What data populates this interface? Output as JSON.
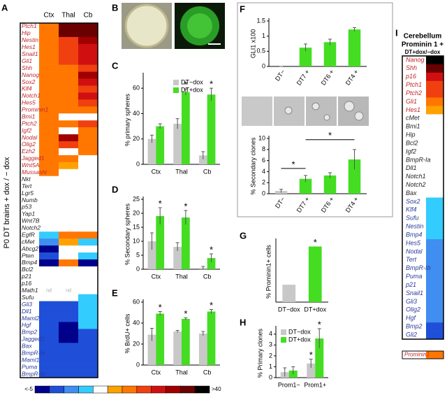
{
  "panel_labels": [
    "A",
    "B",
    "C",
    "D",
    "E",
    "F",
    "G",
    "H",
    "I"
  ],
  "heatmap_a": {
    "columns": [
      "Ctx",
      "Thal",
      "Cb"
    ],
    "side_label": "P0 DT brains + dox / − dox",
    "rows": [
      {
        "gene": "Ptch1",
        "color": "#c0272d",
        "cells": [
          "#ff7700",
          "#6a0000",
          "#6a0000"
        ]
      },
      {
        "gene": "Hip",
        "color": "#c0272d",
        "cells": [
          "#ff7700",
          "#6a0000",
          "#6a0000"
        ]
      },
      {
        "gene": "Nestin",
        "color": "#c0272d",
        "cells": [
          "#ff7700",
          "#f04010",
          "#a00000"
        ]
      },
      {
        "gene": "Hes1",
        "color": "#c0272d",
        "cells": [
          "#ff7700",
          "#f04010",
          "#d01010"
        ]
      },
      {
        "gene": "Snail1",
        "color": "#c0272d",
        "cells": [
          "#ff7700",
          "#f04010",
          "#d01010"
        ]
      },
      {
        "gene": "Gli1",
        "color": "#c0272d",
        "cells": [
          "#ff7700",
          "#f04010",
          "#d01010"
        ]
      },
      {
        "gene": "Shh",
        "color": "#c0272d",
        "cells": [
          "#ff7700",
          "#ff7700",
          "#f04010"
        ]
      },
      {
        "gene": "Nanog",
        "color": "#c0272d",
        "cells": [
          "#ff7700",
          "#ff7700",
          "#a00000"
        ]
      },
      {
        "gene": "Sox2",
        "color": "#c0272d",
        "cells": [
          "#ff7700",
          "#ff7700",
          "#d01010"
        ]
      },
      {
        "gene": "Klf4",
        "color": "#c0272d",
        "cells": [
          "#ff7700",
          "#ff7700",
          "#f04010"
        ]
      },
      {
        "gene": "Notch1",
        "color": "#c0272d",
        "cells": [
          "#ff7700",
          "#ff7700",
          "#d01010"
        ]
      },
      {
        "gene": "Hes5",
        "color": "#c0272d",
        "cells": [
          "#ff7700",
          "#ff7700",
          "#f04010"
        ]
      },
      {
        "gene": "Prominin1",
        "color": "#c0272d",
        "cells": [
          "#ff7700",
          "#ff7700",
          "#ff7700"
        ]
      },
      {
        "gene": "Bmi1",
        "color": "#c0272d",
        "cells": [
          "#ff7700",
          "#ffffff",
          "#ffffff"
        ]
      },
      {
        "gene": "Ptch2",
        "color": "#c0272d",
        "cells": [
          "#ff7700",
          "#ff7700",
          "#f04010"
        ]
      },
      {
        "gene": "Igf2",
        "color": "#c0272d",
        "cells": [
          "#ff7700",
          "#ffffff",
          "#ff7700"
        ]
      },
      {
        "gene": "Nodal",
        "color": "#c0272d",
        "cells": [
          "#ff7700",
          "#a00000",
          "#ff7700"
        ]
      },
      {
        "gene": "Olig2",
        "color": "#c0272d",
        "cells": [
          "#ff7700",
          "#f04010",
          "#ff7700"
        ]
      },
      {
        "gene": "Ezh2",
        "color": "#c0272d",
        "cells": [
          "#ff7700",
          "#ffffff",
          "#ff7700"
        ]
      },
      {
        "gene": "Jagged1",
        "color": "#c0272d",
        "cells": [
          "#ff7700",
          "#ff7700",
          "#ffffff"
        ]
      },
      {
        "gene": "Wnt5A",
        "color": "#c0272d",
        "cells": [
          "#ff7700",
          "#ffa200",
          "#ffffff"
        ]
      },
      {
        "gene": "Mussashi",
        "color": "#c0272d",
        "cells": [
          "#ff7700",
          "#ffffff",
          "#ffffff"
        ]
      },
      {
        "gene": "Nkt",
        "color": "#222222",
        "cells": [
          "#ffffff",
          "#ffffff",
          "#ffffff"
        ]
      },
      {
        "gene": "Tert",
        "color": "#222222",
        "cells": [
          "#ffffff",
          "#ffffff",
          "#ffffff"
        ]
      },
      {
        "gene": "Lgr5",
        "color": "#222222",
        "cells": [
          "#ffffff",
          "#ffffff",
          "#ffffff"
        ]
      },
      {
        "gene": "Numb",
        "color": "#222222",
        "cells": [
          "#ffffff",
          "#ffffff",
          "#ffffff"
        ]
      },
      {
        "gene": "p53",
        "color": "#222222",
        "cells": [
          "#ffffff",
          "#ffffff",
          "#ffffff"
        ]
      },
      {
        "gene": "Yap1",
        "color": "#222222",
        "cells": [
          "#ffffff",
          "#ffffff",
          "#ffffff"
        ]
      },
      {
        "gene": "Wnt7B",
        "color": "#222222",
        "cells": [
          "#ffffff",
          "#ffffff",
          "#ffffff"
        ]
      },
      {
        "gene": "Notch2",
        "color": "#222222",
        "cells": [
          "#ffffff",
          "#ffffff",
          "#ffffff"
        ]
      },
      {
        "gene": "EgfR",
        "color": "#222222",
        "cells": [
          "#33ccff",
          "#ff7700",
          "#ff7700"
        ]
      },
      {
        "gene": "cMet",
        "color": "#222222",
        "cells": [
          "#3f8ef0",
          "#ffa200",
          "#33ccff"
        ]
      },
      {
        "gene": "Abcg2",
        "color": "#222222",
        "cells": [
          "#00008b",
          "#ffffff",
          "#ffffff"
        ]
      },
      {
        "gene": "Pten",
        "color": "#222222",
        "cells": [
          "#1f4fd8",
          "#ffffff",
          "#33ccff"
        ]
      },
      {
        "gene": "Bmp4",
        "color": "#222222",
        "cells": [
          "#00008b",
          "#ff7700",
          "#00008b"
        ]
      },
      {
        "gene": "Bcl2",
        "color": "#222222",
        "cells": [
          "#ffffff",
          "#ffffff",
          "#ffffff"
        ]
      },
      {
        "gene": "p21",
        "color": "#222222",
        "cells": [
          "#ffffff",
          "#ffffff",
          "#ffffff"
        ]
      },
      {
        "gene": "p16",
        "color": "#222222",
        "cells": [
          "#ffffff",
          "#ffffff",
          "#ffffff"
        ]
      },
      {
        "gene": "Math1",
        "color": "#222222",
        "cells": [
          "#ffffff",
          "#ffffff",
          "#ffffff"
        ],
        "texts": [
          "nd",
          "nd",
          null
        ]
      },
      {
        "gene": "Sufu",
        "color": "#222222",
        "cells": [
          "#ffffff",
          "#ffffff",
          "#33ccff"
        ]
      },
      {
        "gene": "Gli3",
        "color": "#2b3a9a",
        "cells": [
          "#1f4fd8",
          "#1f4fd8",
          "#33ccff"
        ]
      },
      {
        "gene": "Dll1",
        "color": "#2b3a9a",
        "cells": [
          "#1f4fd8",
          "#1f4fd8",
          "#33ccff"
        ]
      },
      {
        "gene": "Maml2",
        "color": "#2b3a9a",
        "cells": [
          "#1f4fd8",
          "#1f4fd8",
          "#33ccff"
        ]
      },
      {
        "gene": "Hgf",
        "color": "#2b3a9a",
        "cells": [
          "#1f4fd8",
          "#00008b",
          "#33ccff"
        ]
      },
      {
        "gene": "Bmp2",
        "color": "#2b3a9a",
        "cells": [
          "#1f4fd8",
          "#00008b",
          "#1f4fd8"
        ]
      },
      {
        "gene": "Jagged2",
        "color": "#2b3a9a",
        "cells": [
          "#1f4fd8",
          "#00008b",
          "#1f4fd8"
        ]
      },
      {
        "gene": "Bax",
        "color": "#2b3a9a",
        "cells": [
          "#1f4fd8",
          "#1f4fd8",
          "#1f4fd8"
        ]
      },
      {
        "gene": "BmpR-Ia",
        "color": "#2b3a9a",
        "cells": [
          "#1f4fd8",
          "#1f4fd8",
          "#1f4fd8"
        ]
      },
      {
        "gene": "Maml1",
        "color": "#2b3a9a",
        "cells": [
          "#1f4fd8",
          "#1f4fd8",
          "#1f4fd8"
        ]
      },
      {
        "gene": "Puma",
        "color": "#2b3a9a",
        "cells": [
          "#1f4fd8",
          "#1f4fd8",
          "#1f4fd8"
        ]
      },
      {
        "gene": "BmpR-Ib",
        "color": "#2b3a9a",
        "cells": [
          "#1f4fd8",
          "#1f4fd8",
          "#1f4fd8"
        ]
      }
    ],
    "scale": {
      "colors": [
        "#00008b",
        "#1f4fd8",
        "#3f8ef0",
        "#33ccff",
        "#ffffff",
        "#ffa200",
        "#ff7700",
        "#f04010",
        "#d01010",
        "#a00000",
        "#6a0000",
        "#000000"
      ],
      "low": "<-5",
      "high": ">40"
    }
  },
  "heatmap_i": {
    "title": "Cerebellum",
    "subtitle": "Prominin 1 +",
    "condition": "DT+dox/−dox",
    "rows": [
      {
        "gene": "Nanog",
        "color": "#c0272d",
        "cell": "#000000"
      },
      {
        "gene": "Shh",
        "color": "#c0272d",
        "cell": "#6a0000"
      },
      {
        "gene": "p16",
        "color": "#c0272d",
        "cell": "#d01010"
      },
      {
        "gene": "Ptch1",
        "color": "#c0272d",
        "cell": "#f04010"
      },
      {
        "gene": "Ptch2",
        "color": "#c0272d",
        "cell": "#f04010"
      },
      {
        "gene": "Gli1",
        "color": "#c0272d",
        "cell": "#ff7700"
      },
      {
        "gene": "Hes1",
        "color": "#c0272d",
        "cell": "#ffa200"
      },
      {
        "gene": "cMet",
        "color": "#222222",
        "cell": "#ffffff"
      },
      {
        "gene": "Bmi1",
        "color": "#222222",
        "cell": "#ffffff"
      },
      {
        "gene": "Hip",
        "color": "#222222",
        "cell": "#ffffff"
      },
      {
        "gene": "Bcl2",
        "color": "#222222",
        "cell": "#ffffff"
      },
      {
        "gene": "Igf2",
        "color": "#222222",
        "cell": "#ffffff"
      },
      {
        "gene": "BmpR-Ia",
        "color": "#222222",
        "cell": "#ffffff"
      },
      {
        "gene": "Dll1",
        "color": "#222222",
        "cell": "#ffffff"
      },
      {
        "gene": "Notch1",
        "color": "#222222",
        "cell": "#ffffff"
      },
      {
        "gene": "Notch2",
        "color": "#222222",
        "cell": "#ffffff"
      },
      {
        "gene": "Bax",
        "color": "#222222",
        "cell": "#ffffff"
      },
      {
        "gene": "Sox2",
        "color": "#2b3a9a",
        "cell": "#33ccff"
      },
      {
        "gene": "Klf4",
        "color": "#2b3a9a",
        "cell": "#33ccff"
      },
      {
        "gene": "Sufu",
        "color": "#2b3a9a",
        "cell": "#33ccff"
      },
      {
        "gene": "Nestin",
        "color": "#2b3a9a",
        "cell": "#33ccff"
      },
      {
        "gene": "Bmp4",
        "color": "#2b3a9a",
        "cell": "#33ccff"
      },
      {
        "gene": "Hes5",
        "color": "#2b3a9a",
        "cell": "#3f8ef0"
      },
      {
        "gene": "Nodal",
        "color": "#2b3a9a",
        "cell": "#3f8ef0"
      },
      {
        "gene": "Tert",
        "color": "#2b3a9a",
        "cell": "#3f8ef0"
      },
      {
        "gene": "BmpR-Ib",
        "color": "#2b3a9a",
        "cell": "#3f8ef0"
      },
      {
        "gene": "Puma",
        "color": "#2b3a9a",
        "cell": "#3f8ef0"
      },
      {
        "gene": "p21",
        "color": "#2b3a9a",
        "cell": "#3f8ef0"
      },
      {
        "gene": "Snail1",
        "color": "#2b3a9a",
        "cell": "#3f8ef0"
      },
      {
        "gene": "Gli3",
        "color": "#2b3a9a",
        "cell": "#3f8ef0"
      },
      {
        "gene": "Olig2",
        "color": "#2b3a9a",
        "cell": "#3f8ef0"
      },
      {
        "gene": "Hgf",
        "color": "#2b3a9a",
        "cell": "#3f8ef0"
      },
      {
        "gene": "Bmp2",
        "color": "#2b3a9a",
        "cell": "#1f4fd8"
      },
      {
        "gene": "Gli2",
        "color": "#2b3a9a",
        "cell": "#1f4fd8"
      }
    ],
    "separate": {
      "gene": "Prominin1",
      "color": "#c0272d",
      "cell": "#ff7700"
    }
  },
  "chart_data": [
    {
      "type": "bar",
      "ylabel": "% primary spheres",
      "categories": [
        "Ctx",
        "Thal",
        "Cb"
      ],
      "ylim": [
        0,
        70
      ],
      "yticks": [
        0,
        20,
        40,
        60
      ],
      "legend": true,
      "series": [
        {
          "name": "DT−dox",
          "color": "#c8c8c8",
          "values": [
            20,
            32,
            7
          ],
          "errors": [
            3,
            4,
            3
          ],
          "significance": [
            null,
            null,
            null
          ]
        },
        {
          "name": "DT+dox",
          "color": "#44dd22",
          "values": [
            30,
            57,
            55
          ],
          "errors": [
            2,
            2.5,
            5
          ],
          "significance": [
            null,
            "*",
            "*"
          ]
        }
      ]
    },
    {
      "type": "bar",
      "ylabel": "% Secondary spheres",
      "categories": [
        "Ctx",
        "Thal",
        "Cb"
      ],
      "ylim": [
        0,
        25
      ],
      "yticks": [
        0,
        5,
        10,
        15,
        20,
        25
      ],
      "series": [
        {
          "color": "#c8c8c8",
          "values": [
            10,
            8,
            0.5
          ],
          "errors": [
            3,
            1.5,
            0.5
          ]
        },
        {
          "color": "#44dd22",
          "values": [
            19,
            18.5,
            4
          ],
          "errors": [
            3,
            2.5,
            1.5
          ],
          "significance": [
            "*",
            "*",
            "*"
          ]
        }
      ]
    },
    {
      "type": "bar",
      "ylabel": "% BrdU+ cells",
      "categories": [
        "Ctx",
        "Thal",
        "Cb"
      ],
      "ylim": [
        0,
        60
      ],
      "yticks": [
        0,
        20,
        40,
        60
      ],
      "series": [
        {
          "color": "#c8c8c8",
          "values": [
            29,
            32,
            30
          ],
          "errors": [
            6,
            1,
            2
          ]
        },
        {
          "color": "#44dd22",
          "values": [
            49,
            44,
            51
          ],
          "errors": [
            2,
            1,
            2
          ],
          "significance": [
            "*",
            "*",
            "*"
          ]
        }
      ]
    },
    {
      "type": "bar",
      "ylabel": "GLI1 x100",
      "categories": [
        "DT−",
        "DT7 +",
        "DT6 +",
        "DT4 +"
      ],
      "ylim": [
        0,
        1.5
      ],
      "yticks": [
        0,
        0.5,
        1,
        1.5
      ],
      "series": [
        {
          "color": "#44dd22",
          "values": [
            0,
            0.62,
            0.8,
            1.22
          ],
          "errors": [
            0,
            0.12,
            0.1,
            0.06
          ]
        }
      ]
    },
    {
      "type": "bar",
      "ylabel": "% Secondary clones",
      "categories": [
        "DT−",
        "DT7 +",
        "DT6 +",
        "DT4 +"
      ],
      "ylim": [
        0,
        10
      ],
      "yticks": [
        0,
        2,
        4,
        6,
        8,
        10
      ],
      "series": [
        {
          "colors": [
            "#c8c8c8",
            "#44dd22",
            "#44dd22",
            "#44dd22"
          ],
          "values": [
            0.5,
            2.7,
            3.3,
            6.2
          ],
          "errors": [
            0.3,
            0.6,
            0.5,
            1.8
          ]
        }
      ],
      "comparisons": [
        {
          "label": "*",
          "from": 0,
          "to": 1
        },
        {
          "label": "*",
          "from": 1,
          "to": 3
        }
      ]
    },
    {
      "type": "bar",
      "ylabel": "% Prominin1+ cells",
      "categories": [
        "DT−dox",
        "DT+dox"
      ],
      "ylim": [
        0,
        35
      ],
      "series": [
        {
          "colors": [
            "#c8c8c8",
            "#44dd22"
          ],
          "values": [
            10,
            32
          ],
          "significance": [
            null,
            "*"
          ]
        }
      ]
    },
    {
      "type": "bar",
      "ylabel": "% Primary clones",
      "categories": [
        "Prom1−",
        "Prom1+"
      ],
      "ylim": [
        0,
        4.5
      ],
      "yticks": [
        0,
        1,
        2,
        3,
        4
      ],
      "legend": true,
      "series": [
        {
          "name": "DT−dox",
          "color": "#c8c8c8",
          "values": [
            0.5,
            1.3
          ],
          "errors": [
            0.4,
            0.4
          ],
          "significance": [
            null,
            "*"
          ]
        },
        {
          "name": "DT+dox",
          "color": "#44dd22",
          "values": [
            0.65,
            3.6
          ],
          "errors": [
            0.35,
            0.9
          ],
          "significance": [
            null,
            "*"
          ]
        }
      ]
    }
  ]
}
